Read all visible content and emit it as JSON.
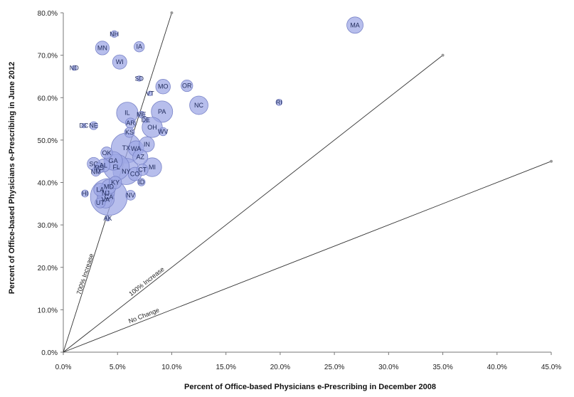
{
  "chart_data": {
    "type": "scatter",
    "subtype": "bubble",
    "title": "",
    "xlabel": "Percent of Office-based Physicians  e-Prescribing in December 2008",
    "ylabel": "Percent of Office-based Physicians  e-Prescribing in June 2012",
    "xlim": [
      0,
      45
    ],
    "ylim": [
      0,
      80
    ],
    "x_ticks": [
      0,
      5,
      10,
      15,
      20,
      25,
      30,
      35,
      40,
      45
    ],
    "y_ticks": [
      0,
      10,
      20,
      30,
      40,
      50,
      60,
      70,
      80
    ],
    "x_tick_labels": [
      "0.0%",
      "5.0%",
      "10.0%",
      "15.0%",
      "20.0%",
      "25.0%",
      "30.0%",
      "35.0%",
      "40.0%",
      "45.0%"
    ],
    "y_tick_labels": [
      "0.0%",
      "10.0%",
      "20.0%",
      "30.0%",
      "40.0%",
      "50.0%",
      "60.0%",
      "70.0%",
      "80.0%"
    ],
    "grid": false,
    "bubble_color": "#9fa8e6",
    "bubble_edge": "#7a84c8",
    "reference_lines": [
      {
        "label": "700% Increase",
        "slope": 8,
        "x_end": 10
      },
      {
        "label": "100% Increase",
        "slope": 2,
        "x_end": 35
      },
      {
        "label": "No Change",
        "slope": 1,
        "x_end": 45
      }
    ],
    "points": [
      {
        "state": "MA",
        "x": 26.9,
        "y": 77.1,
        "size": 7.5
      },
      {
        "state": "NH",
        "x": 4.7,
        "y": 75.0,
        "size": 1.3
      },
      {
        "state": "MN",
        "x": 3.6,
        "y": 71.7,
        "size": 5.3
      },
      {
        "state": "IA",
        "x": 7.0,
        "y": 72.0,
        "size": 3.0
      },
      {
        "state": "ND",
        "x": 1.0,
        "y": 67.0,
        "size": 0.7
      },
      {
        "state": "WI",
        "x": 5.2,
        "y": 68.4,
        "size": 5.7
      },
      {
        "state": "SD",
        "x": 7.0,
        "y": 64.5,
        "size": 0.8
      },
      {
        "state": "MO",
        "x": 9.2,
        "y": 62.6,
        "size": 6.0
      },
      {
        "state": "OR",
        "x": 11.4,
        "y": 62.8,
        "size": 3.8
      },
      {
        "state": "VT",
        "x": 8.0,
        "y": 61.0,
        "size": 0.6
      },
      {
        "state": "RI",
        "x": 19.9,
        "y": 58.9,
        "size": 1.1
      },
      {
        "state": "NC",
        "x": 12.5,
        "y": 58.2,
        "size": 9.5
      },
      {
        "state": "PA",
        "x": 9.1,
        "y": 56.7,
        "size": 12.8
      },
      {
        "state": "IL",
        "x": 5.9,
        "y": 56.4,
        "size": 12.9
      },
      {
        "state": "ME",
        "x": 7.2,
        "y": 56.0,
        "size": 1.3
      },
      {
        "state": "DE",
        "x": 7.6,
        "y": 54.8,
        "size": 0.9
      },
      {
        "state": "AR",
        "x": 6.2,
        "y": 54.0,
        "size": 2.9
      },
      {
        "state": "DC",
        "x": 1.9,
        "y": 53.4,
        "size": 0.6
      },
      {
        "state": "NE",
        "x": 2.8,
        "y": 53.4,
        "size": 1.8
      },
      {
        "state": "OH",
        "x": 8.2,
        "y": 53.0,
        "size": 11.5
      },
      {
        "state": "KS",
        "x": 6.1,
        "y": 51.8,
        "size": 2.8
      },
      {
        "state": "WV",
        "x": 9.2,
        "y": 52.0,
        "size": 1.9
      },
      {
        "state": "IN",
        "x": 7.7,
        "y": 49.0,
        "size": 6.5
      },
      {
        "state": "TX",
        "x": 5.8,
        "y": 48.1,
        "size": 25.1
      },
      {
        "state": "WA",
        "x": 6.7,
        "y": 48.0,
        "size": 6.7
      },
      {
        "state": "OK",
        "x": 4.0,
        "y": 47.0,
        "size": 3.8
      },
      {
        "state": "AZ",
        "x": 7.1,
        "y": 46.0,
        "size": 6.4
      },
      {
        "state": "GA",
        "x": 4.6,
        "y": 45.1,
        "size": 9.7
      },
      {
        "state": "SC",
        "x": 2.8,
        "y": 44.4,
        "size": 4.6
      },
      {
        "state": "AL",
        "x": 3.7,
        "y": 44.0,
        "size": 4.8
      },
      {
        "state": "FL",
        "x": 4.9,
        "y": 43.6,
        "size": 18.8
      },
      {
        "state": "MI",
        "x": 8.2,
        "y": 43.6,
        "size": 9.9
      },
      {
        "state": "CT",
        "x": 7.3,
        "y": 43.0,
        "size": 3.6
      },
      {
        "state": "NY",
        "x": 5.8,
        "y": 42.6,
        "size": 19.4
      },
      {
        "state": "MS",
        "x": 3.3,
        "y": 43.4,
        "size": 3.0
      },
      {
        "state": "NM",
        "x": 3.0,
        "y": 42.5,
        "size": 2.1
      },
      {
        "state": "CO",
        "x": 6.6,
        "y": 42.0,
        "size": 5.0
      },
      {
        "state": "KY",
        "x": 4.8,
        "y": 40.0,
        "size": 4.3
      },
      {
        "state": "ID",
        "x": 7.2,
        "y": 40.1,
        "size": 1.6
      },
      {
        "state": "MD",
        "x": 4.2,
        "y": 39.0,
        "size": 5.9
      },
      {
        "state": "LA",
        "x": 3.4,
        "y": 38.3,
        "size": 4.6
      },
      {
        "state": "NJ",
        "x": 3.9,
        "y": 37.5,
        "size": 8.8
      },
      {
        "state": "HI",
        "x": 2.0,
        "y": 37.4,
        "size": 1.4
      },
      {
        "state": "CA",
        "x": 4.2,
        "y": 36.6,
        "size": 38.0
      },
      {
        "state": "VA",
        "x": 3.9,
        "y": 36.0,
        "size": 8.2
      },
      {
        "state": "UT",
        "x": 3.4,
        "y": 35.2,
        "size": 2.9
      },
      {
        "state": "NV",
        "x": 6.2,
        "y": 37.0,
        "size": 2.7
      },
      {
        "state": "AK",
        "x": 4.1,
        "y": 31.5,
        "size": 0.7
      }
    ]
  }
}
